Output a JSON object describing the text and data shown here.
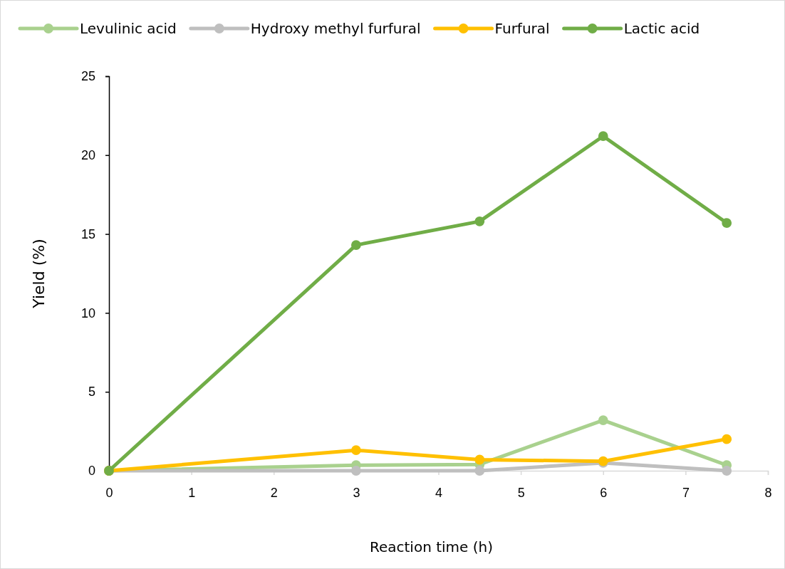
{
  "chart_data": {
    "type": "line",
    "xlabel": "Reaction time (h)",
    "ylabel": "Yield (%)",
    "x": [
      0,
      3,
      4.5,
      6,
      7.5
    ],
    "xlim": [
      0,
      8
    ],
    "xticks": [
      0,
      1,
      2,
      3,
      4,
      5,
      6,
      7,
      8
    ],
    "ylim": [
      0,
      25
    ],
    "yticks": [
      0,
      5,
      10,
      15,
      20,
      25
    ],
    "grid": false,
    "legend": "top",
    "marker": "circle",
    "line_style": "solid",
    "series": [
      {
        "name": "Levulinic acid",
        "color": "#a9d18e",
        "values": [
          0,
          0.35,
          0.4,
          3.2,
          0.35
        ]
      },
      {
        "name": "Hydroxy methyl furfural",
        "color": "#bfbfbf",
        "values": [
          0,
          0,
          0,
          0.5,
          0
        ]
      },
      {
        "name": "Furfural",
        "color": "#ffc000",
        "values": [
          0,
          1.3,
          0.7,
          0.6,
          2.0
        ]
      },
      {
        "name": "Lactic acid",
        "color": "#70ad47",
        "values": [
          0,
          14.3,
          15.8,
          21.2,
          15.7
        ]
      }
    ]
  }
}
